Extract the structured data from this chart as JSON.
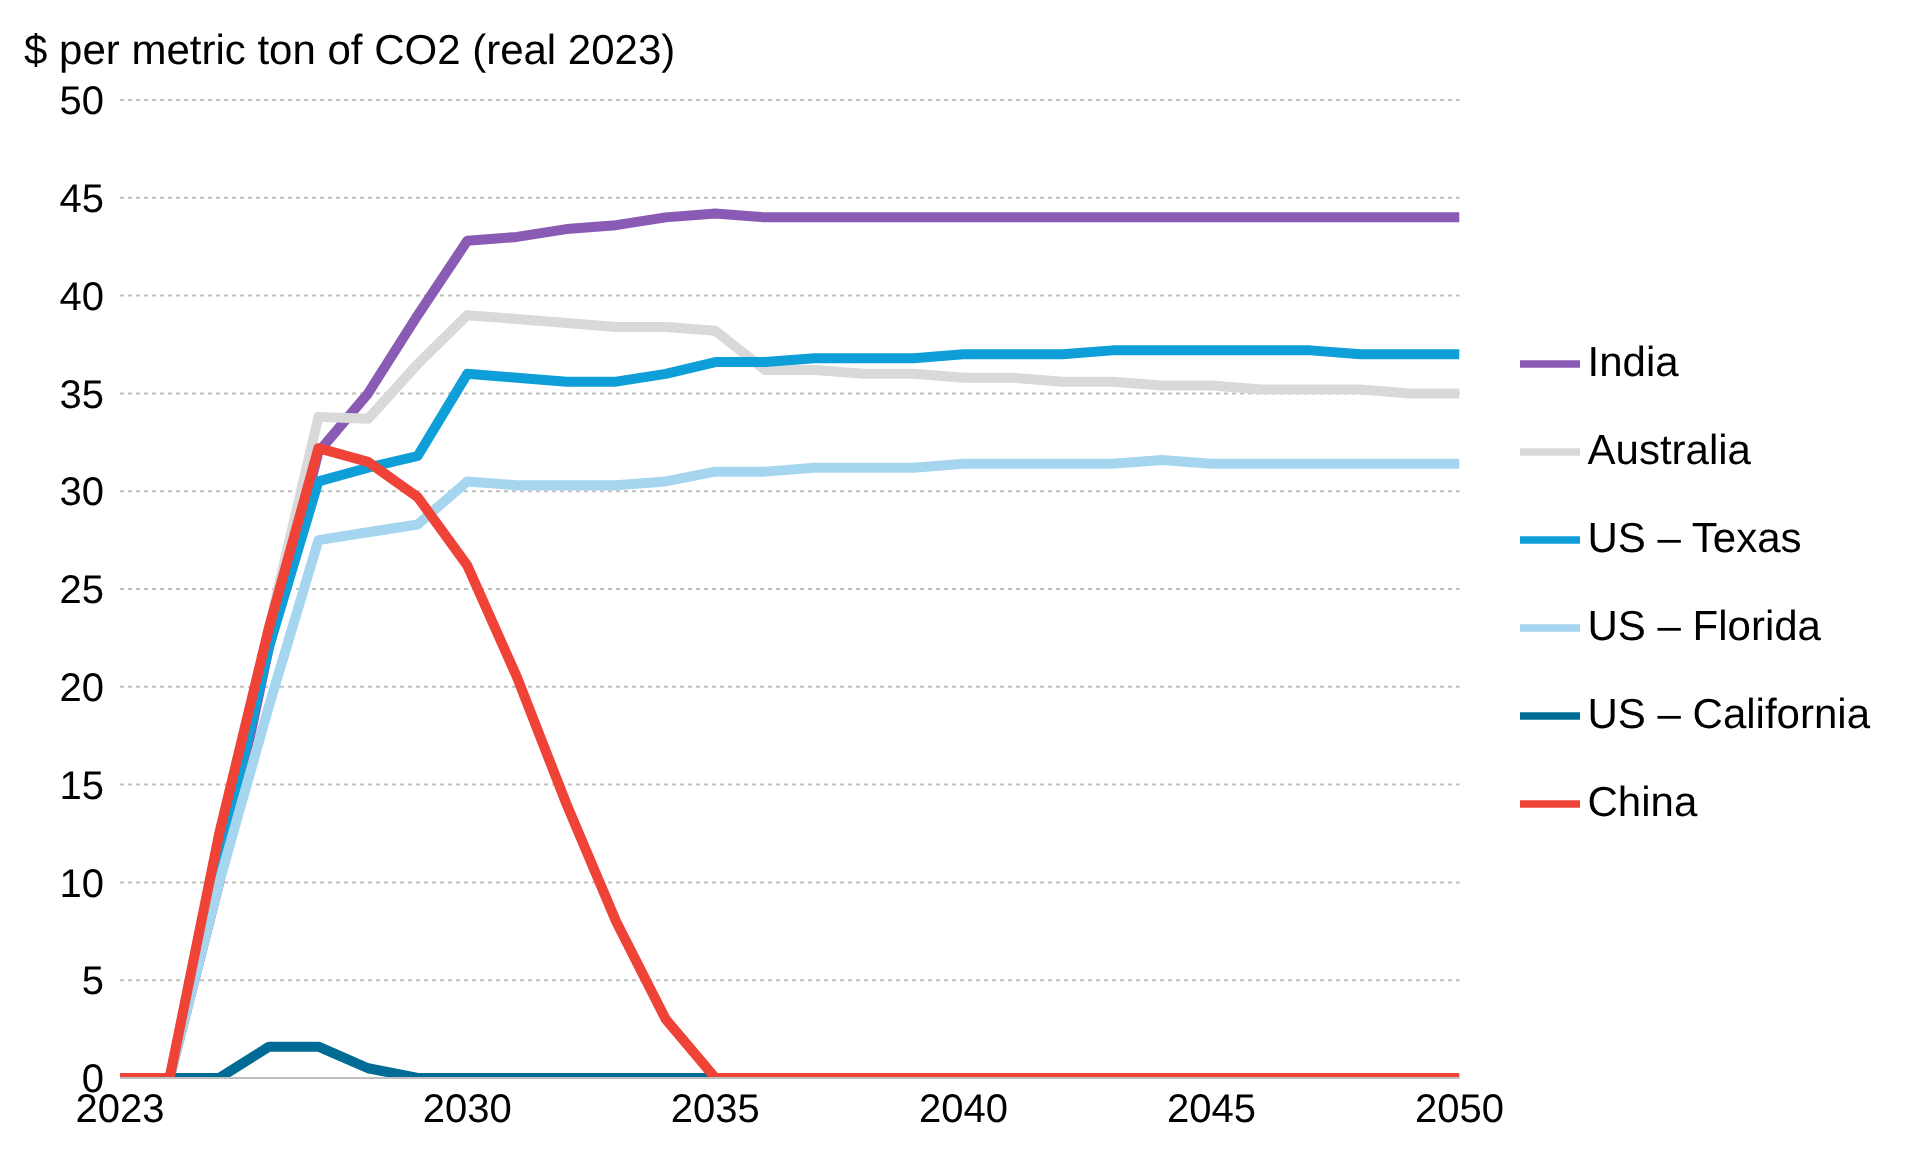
{
  "chart_data": {
    "type": "line",
    "title": "$ per metric ton of CO2 (real 2023)",
    "x": [
      2023,
      2024,
      2025,
      2026,
      2027,
      2028,
      2029,
      2030,
      2031,
      2032,
      2033,
      2034,
      2035,
      2036,
      2037,
      2038,
      2039,
      2040,
      2041,
      2042,
      2043,
      2044,
      2045,
      2046,
      2047,
      2048,
      2049,
      2050
    ],
    "xlim": [
      2023,
      2050
    ],
    "xticks": [
      2023,
      2030,
      2035,
      2040,
      2045,
      2050
    ],
    "ylim": [
      0,
      50
    ],
    "yticks": [
      0,
      5,
      10,
      15,
      20,
      25,
      30,
      35,
      40,
      45,
      50
    ],
    "grid": "y",
    "legend": "right",
    "marker": "none",
    "line_style": "solid",
    "series": [
      {
        "name": "India",
        "color": "#8a5bb5",
        "values": [
          0,
          0,
          10,
          22,
          32,
          35,
          39,
          42.8,
          43,
          43.4,
          43.6,
          44,
          44.2,
          44,
          44,
          44,
          44,
          44,
          44,
          44,
          44,
          44,
          44,
          44,
          44,
          44,
          44,
          44
        ]
      },
      {
        "name": "Australia",
        "color": "#d9d9d9",
        "values": [
          0,
          0,
          12,
          23,
          33.8,
          33.7,
          36.5,
          39,
          38.8,
          38.6,
          38.4,
          38.4,
          38.2,
          36.2,
          36.2,
          36,
          36,
          35.8,
          35.8,
          35.6,
          35.6,
          35.4,
          35.4,
          35.2,
          35.2,
          35.2,
          35,
          35
        ]
      },
      {
        "name": "US – Texas",
        "color": "#0e9fd9",
        "values": [
          0,
          0,
          11,
          22,
          30.5,
          31.2,
          31.8,
          36,
          35.8,
          35.6,
          35.6,
          36,
          36.6,
          36.6,
          36.8,
          36.8,
          36.8,
          37,
          37,
          37,
          37.2,
          37.2,
          37.2,
          37.2,
          37.2,
          37,
          37,
          37
        ]
      },
      {
        "name": "US – Florida",
        "color": "#a6d6ef",
        "values": [
          0,
          0,
          10,
          19,
          27.5,
          27.9,
          28.3,
          30.5,
          30.3,
          30.3,
          30.3,
          30.5,
          31,
          31,
          31.2,
          31.2,
          31.2,
          31.4,
          31.4,
          31.4,
          31.4,
          31.6,
          31.4,
          31.4,
          31.4,
          31.4,
          31.4,
          31.4
        ]
      },
      {
        "name": "US – California",
        "color": "#006b94",
        "values": [
          null,
          0,
          0,
          1.6,
          1.6,
          0.5,
          0,
          0,
          0,
          0,
          0,
          0,
          0,
          null,
          null,
          null,
          null,
          null,
          null,
          null,
          null,
          null,
          null,
          null,
          null,
          null,
          null,
          null
        ]
      },
      {
        "name": "China",
        "color": "#ee4336",
        "values": [
          0,
          0,
          12.5,
          23,
          32.2,
          31.5,
          29.7,
          26.2,
          20.5,
          14,
          8,
          3,
          0,
          0,
          0,
          0,
          0,
          0,
          0,
          0,
          0,
          0,
          0,
          0,
          0,
          0,
          0,
          0
        ]
      }
    ]
  }
}
